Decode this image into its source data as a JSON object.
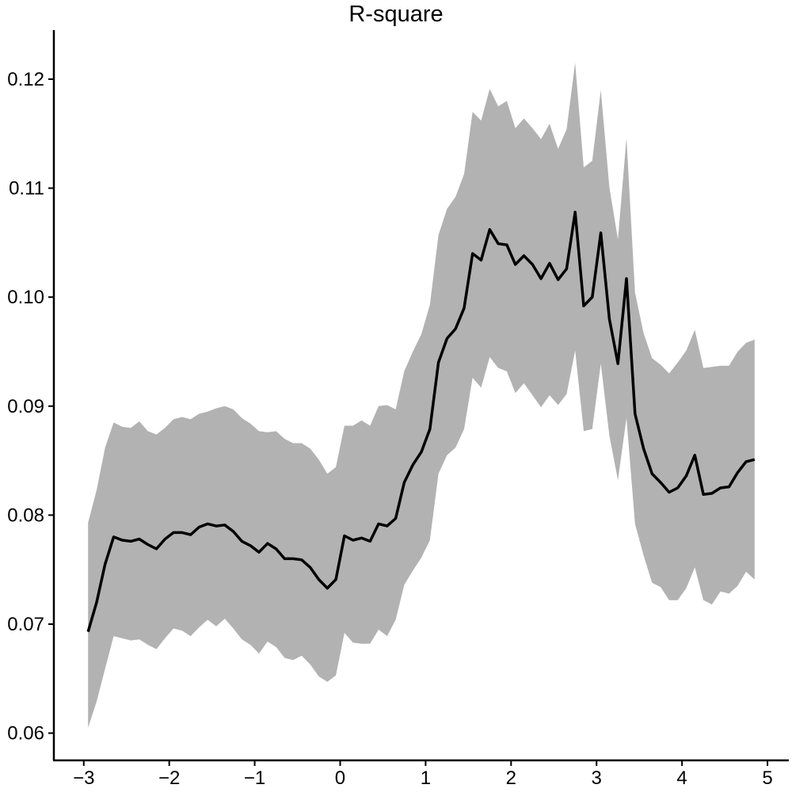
{
  "chart_data": {
    "type": "line",
    "title": "R-square",
    "xlabel": "",
    "ylabel": "",
    "xlim": [
      -3.35,
      5.25
    ],
    "ylim": [
      0.0575,
      0.1245
    ],
    "xticks": [
      -3,
      -2,
      -1,
      0,
      1,
      2,
      3,
      4,
      5
    ],
    "xtick_labels": [
      "−3",
      "−2",
      "−1",
      "0",
      "1",
      "2",
      "3",
      "4",
      "5"
    ],
    "yticks": [
      0.06,
      0.07,
      0.08,
      0.09,
      0.1,
      0.11,
      0.12
    ],
    "ytick_labels": [
      "0.06",
      "0.07",
      "0.08",
      "0.09",
      "0.10",
      "0.11",
      "0.12"
    ],
    "grid": false,
    "legend": "none",
    "colors": {
      "line": "#000000",
      "band": "#b2b2b2",
      "axis": "#000000"
    },
    "series": [
      {
        "x": [
          -2.95,
          -2.85,
          -2.75,
          -2.65,
          -2.55,
          -2.45,
          -2.35,
          -2.25,
          -2.15,
          -2.05,
          -1.95,
          -1.85,
          -1.75,
          -1.65,
          -1.55,
          -1.45,
          -1.35,
          -1.25,
          -1.15,
          -1.05,
          -0.95,
          -0.85,
          -0.75,
          -0.65,
          -0.55,
          -0.45,
          -0.35,
          -0.25,
          -0.15,
          -0.05,
          0.05,
          0.15,
          0.25,
          0.35,
          0.45,
          0.55,
          0.65,
          0.75,
          0.85,
          0.95,
          1.05,
          1.15,
          1.25,
          1.35,
          1.45,
          1.55,
          1.65,
          1.75,
          1.85,
          1.95,
          2.05,
          2.15,
          2.25,
          2.35,
          2.45,
          2.55,
          2.65,
          2.75,
          2.85,
          2.95,
          3.05,
          3.15,
          3.25,
          3.35,
          3.45,
          3.55,
          3.65,
          3.75,
          3.85,
          3.95,
          4.05,
          4.15,
          4.25,
          4.35,
          4.45,
          4.55,
          4.65,
          4.75,
          4.85
        ],
        "y": [
          0.0693,
          0.072,
          0.0755,
          0.078,
          0.0777,
          0.0776,
          0.0778,
          0.0773,
          0.0769,
          0.0778,
          0.0784,
          0.0784,
          0.0782,
          0.0789,
          0.0792,
          0.079,
          0.0791,
          0.0785,
          0.0776,
          0.0772,
          0.0766,
          0.0774,
          0.0769,
          0.076,
          0.076,
          0.0759,
          0.0752,
          0.0741,
          0.0733,
          0.0741,
          0.0781,
          0.0777,
          0.0779,
          0.0776,
          0.0792,
          0.079,
          0.0797,
          0.083,
          0.0846,
          0.0858,
          0.0879,
          0.094,
          0.0962,
          0.0971,
          0.099,
          0.104,
          0.1034,
          0.1062,
          0.1049,
          0.1048,
          0.103,
          0.1038,
          0.103,
          0.1017,
          0.1031,
          0.1016,
          0.1026,
          0.1078,
          0.0992,
          0.1,
          0.1059,
          0.098,
          0.0939,
          0.1017,
          0.0893,
          0.0861,
          0.0838,
          0.083,
          0.0821,
          0.0825,
          0.0836,
          0.0855,
          0.0819,
          0.082,
          0.0825,
          0.0826,
          0.0839,
          0.0849,
          0.0851
        ],
        "lower": [
          0.0605,
          0.0629,
          0.0659,
          0.0689,
          0.0687,
          0.0685,
          0.0686,
          0.0681,
          0.0677,
          0.0687,
          0.0696,
          0.0694,
          0.0689,
          0.0697,
          0.0704,
          0.0698,
          0.0705,
          0.0696,
          0.0686,
          0.0681,
          0.0673,
          0.0684,
          0.0679,
          0.0669,
          0.0667,
          0.0671,
          0.0663,
          0.0652,
          0.0647,
          0.0653,
          0.0692,
          0.0683,
          0.0682,
          0.0682,
          0.0695,
          0.0689,
          0.0704,
          0.0736,
          0.0749,
          0.0761,
          0.0777,
          0.0838,
          0.0855,
          0.0862,
          0.0879,
          0.0926,
          0.0917,
          0.0945,
          0.0935,
          0.0932,
          0.0912,
          0.0921,
          0.091,
          0.0899,
          0.091,
          0.0901,
          0.0911,
          0.0951,
          0.0877,
          0.0879,
          0.0939,
          0.0873,
          0.0832,
          0.0889,
          0.0792,
          0.0763,
          0.0738,
          0.0734,
          0.0722,
          0.0722,
          0.0733,
          0.0752,
          0.0722,
          0.0718,
          0.073,
          0.0728,
          0.0735,
          0.0748,
          0.0741
        ],
        "upper": [
          0.0793,
          0.0823,
          0.0862,
          0.0885,
          0.0881,
          0.088,
          0.0886,
          0.0877,
          0.0874,
          0.088,
          0.0888,
          0.089,
          0.0888,
          0.0893,
          0.0895,
          0.0898,
          0.09,
          0.0897,
          0.0889,
          0.0884,
          0.0877,
          0.0876,
          0.0877,
          0.087,
          0.0866,
          0.0866,
          0.0861,
          0.0851,
          0.0838,
          0.0844,
          0.0882,
          0.0882,
          0.0887,
          0.0882,
          0.09,
          0.0901,
          0.0897,
          0.0932,
          0.095,
          0.0966,
          0.0993,
          0.1057,
          0.1081,
          0.1092,
          0.1113,
          0.117,
          0.1162,
          0.1191,
          0.1175,
          0.118,
          0.1155,
          0.1164,
          0.1155,
          0.1145,
          0.1159,
          0.1136,
          0.1154,
          0.1215,
          0.1119,
          0.1125,
          0.119,
          0.1101,
          0.1053,
          0.1146,
          0.1004,
          0.0967,
          0.0944,
          0.0938,
          0.093,
          0.094,
          0.0951,
          0.097,
          0.0935,
          0.0936,
          0.0937,
          0.0937,
          0.095,
          0.0958,
          0.0961
        ]
      }
    ]
  }
}
